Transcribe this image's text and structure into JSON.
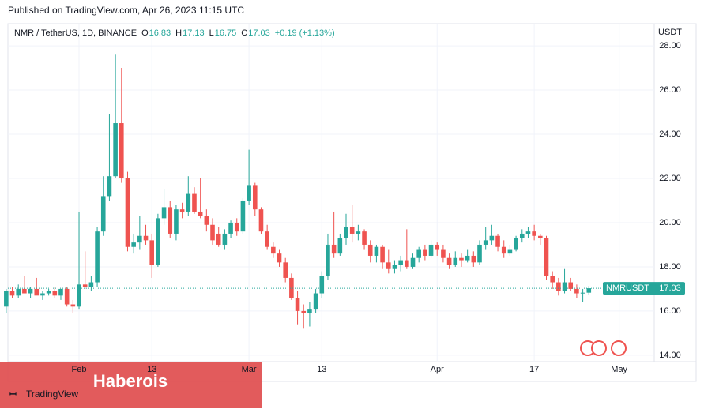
{
  "header": {
    "published": "Published on TradingView.com, Apr 26, 2023 11:15 UTC"
  },
  "watermark": {
    "brand": "Haberois",
    "logo": "TradingView"
  },
  "chart_data": {
    "type": "candlestick",
    "symbol": "NMR / TetherUS, 1D, BINANCE",
    "ohlc_labels": [
      "O",
      "H",
      "L",
      "C"
    ],
    "change": "+0.19 (+1.13%)",
    "currency": "USDT",
    "ticker": "NMRUSDT",
    "up_color": "#26a69a",
    "down_color": "#ef5350",
    "grid": true,
    "x": [
      20,
      21,
      22,
      23,
      24,
      25,
      26,
      27,
      28,
      29,
      30,
      31,
      32,
      33,
      34,
      35,
      36,
      37,
      38,
      39,
      40,
      41,
      42,
      43,
      44,
      45,
      46,
      47,
      48,
      49,
      50,
      51,
      52,
      53,
      54,
      55,
      56,
      57,
      58,
      59,
      60,
      61,
      62,
      63,
      64,
      65,
      66,
      67,
      68,
      69,
      70,
      71,
      72,
      73,
      74,
      75,
      76,
      77,
      78,
      79,
      80,
      81,
      82,
      83,
      84,
      85,
      86,
      87,
      88,
      89,
      90,
      91,
      92,
      93,
      94,
      95,
      96,
      97,
      98,
      99,
      100,
      101,
      102,
      103,
      104,
      105,
      106,
      107,
      108,
      109,
      110,
      111,
      112,
      113,
      114,
      115,
      116
    ],
    "open": [
      16.2,
      16.9,
      16.7,
      17.0,
      16.8,
      17.0,
      16.7,
      16.8,
      16.9,
      16.7,
      17.0,
      16.3,
      16.2,
      17.2,
      17.1,
      17.3,
      19.6,
      21.2,
      22.1,
      24.5,
      22.0,
      18.9,
      19.1,
      19.4,
      19.2,
      18.1,
      20.2,
      20.7,
      19.5,
      20.6,
      20.5,
      21.3,
      20.5,
      20.3,
      19.9,
      19.5,
      19.0,
      19.5,
      20.0,
      19.6,
      21.0,
      21.7,
      20.6,
      19.6,
      18.9,
      18.6,
      18.2,
      17.5,
      16.6,
      16.0,
      15.9,
      16.1,
      16.8,
      17.6,
      19.0,
      18.6,
      19.3,
      19.8,
      19.5,
      19.6,
      19.0,
      18.5,
      18.9,
      18.2,
      17.9,
      18.1,
      18.3,
      18.0,
      18.4,
      18.8,
      18.5,
      19.0,
      18.8,
      18.4,
      18.1,
      18.4,
      18.3,
      18.5,
      18.2,
      19.0,
      19.2,
      19.4,
      18.9,
      18.6,
      18.8,
      19.3,
      19.5,
      19.6,
      19.4,
      19.3,
      17.6,
      17.3,
      16.9,
      17.3,
      17.0,
      16.8,
      16.83
    ],
    "high": [
      17.0,
      17.1,
      17.2,
      17.6,
      17.1,
      17.5,
      16.9,
      17.0,
      17.1,
      17.0,
      17.1,
      16.5,
      20.5,
      18.7,
      17.6,
      19.8,
      22.1,
      24.9,
      27.6,
      27.0,
      22.3,
      19.5,
      20.3,
      19.9,
      19.5,
      20.4,
      21.5,
      21.0,
      20.8,
      20.9,
      22.1,
      21.6,
      22.0,
      20.6,
      20.2,
      19.8,
      19.7,
      20.1,
      20.2,
      21.1,
      23.3,
      21.8,
      20.7,
      19.9,
      19.1,
      18.8,
      18.4,
      17.7,
      16.9,
      16.3,
      16.4,
      17.0,
      17.8,
      19.5,
      20.5,
      19.5,
      20.4,
      20.8,
      19.9,
      19.7,
      19.2,
      19.0,
      19.0,
      18.8,
      18.3,
      18.5,
      19.7,
      18.6,
      18.9,
      19.0,
      19.2,
      19.1,
      19.0,
      18.6,
      18.7,
      18.6,
      18.8,
      18.7,
      19.2,
      19.8,
      19.9,
      19.5,
      19.2,
      19.0,
      19.4,
      19.7,
      19.8,
      19.9,
      19.5,
      19.4,
      17.8,
      17.5,
      17.9,
      17.5,
      17.2,
      17.0,
      17.13
    ],
    "low": [
      15.9,
      16.6,
      16.6,
      16.8,
      16.6,
      16.8,
      16.5,
      16.7,
      16.6,
      16.5,
      16.2,
      15.9,
      16.1,
      17.0,
      16.9,
      17.1,
      19.4,
      21.0,
      22.0,
      21.8,
      18.7,
      18.6,
      18.8,
      19.0,
      17.5,
      18.0,
      19.9,
      19.3,
      19.2,
      20.2,
      20.3,
      20.4,
      20.2,
      19.6,
      19.0,
      18.9,
      18.8,
      19.3,
      19.4,
      19.5,
      20.8,
      20.3,
      19.5,
      18.8,
      18.4,
      18.0,
      17.3,
      16.5,
      15.4,
      15.2,
      15.3,
      15.9,
      16.6,
      17.4,
      18.4,
      18.5,
      19.0,
      19.1,
      19.2,
      18.8,
      18.2,
      18.2,
      17.9,
      17.7,
      17.7,
      17.8,
      17.9,
      17.9,
      18.2,
      18.3,
      18.4,
      18.5,
      18.2,
      17.9,
      18.0,
      18.0,
      18.2,
      18.0,
      18.1,
      18.8,
      19.0,
      18.7,
      18.4,
      18.5,
      18.7,
      19.1,
      19.3,
      19.2,
      19.0,
      17.4,
      17.0,
      16.7,
      16.8,
      16.9,
      16.6,
      16.4,
      16.75
    ],
    "close": [
      16.9,
      16.7,
      17.0,
      16.8,
      17.0,
      16.7,
      16.8,
      16.9,
      16.7,
      17.0,
      16.3,
      16.2,
      17.2,
      17.1,
      17.3,
      19.6,
      21.2,
      22.1,
      24.5,
      22.0,
      18.9,
      19.1,
      19.4,
      19.2,
      18.1,
      20.2,
      20.7,
      19.5,
      20.6,
      20.5,
      21.3,
      20.5,
      20.3,
      19.9,
      19.2,
      19.0,
      19.5,
      20.0,
      19.6,
      21.0,
      21.7,
      20.6,
      19.6,
      18.9,
      18.6,
      18.2,
      17.5,
      16.6,
      16.0,
      15.9,
      16.1,
      16.8,
      17.6,
      19.0,
      18.6,
      19.3,
      19.8,
      19.5,
      19.6,
      19.0,
      18.5,
      18.9,
      18.2,
      17.9,
      18.1,
      18.3,
      18.0,
      18.4,
      18.8,
      18.5,
      19.0,
      18.8,
      18.4,
      18.1,
      18.4,
      18.3,
      18.5,
      18.2,
      19.0,
      19.2,
      19.4,
      18.9,
      18.6,
      18.8,
      19.3,
      19.5,
      19.6,
      19.4,
      19.3,
      17.6,
      17.3,
      16.9,
      17.3,
      17.0,
      16.8,
      16.83,
      17.03
    ],
    "xlim": [
      20.28,
      126.77
    ],
    "xticks": [
      {
        "value": 32,
        "label": "Feb"
      },
      {
        "value": 44,
        "label": "13"
      },
      {
        "value": 60,
        "label": "Mar"
      },
      {
        "value": 72,
        "label": "13"
      },
      {
        "value": 91,
        "label": "Apr"
      },
      {
        "value": 107,
        "label": "17"
      },
      {
        "value": 121,
        "label": "May"
      }
    ],
    "ylim": [
      13.71,
      28.36
    ],
    "yticks": [
      {
        "value": 14,
        "label": "14.00"
      },
      {
        "value": 16,
        "label": "16.00"
      },
      {
        "value": 18,
        "label": "18.00"
      },
      {
        "value": 20,
        "label": "20.00"
      },
      {
        "value": 22,
        "label": "22.00"
      },
      {
        "value": 24,
        "label": "24.00"
      },
      {
        "value": 26,
        "label": "26.00"
      },
      {
        "value": 28,
        "label": "28.00"
      }
    ]
  }
}
